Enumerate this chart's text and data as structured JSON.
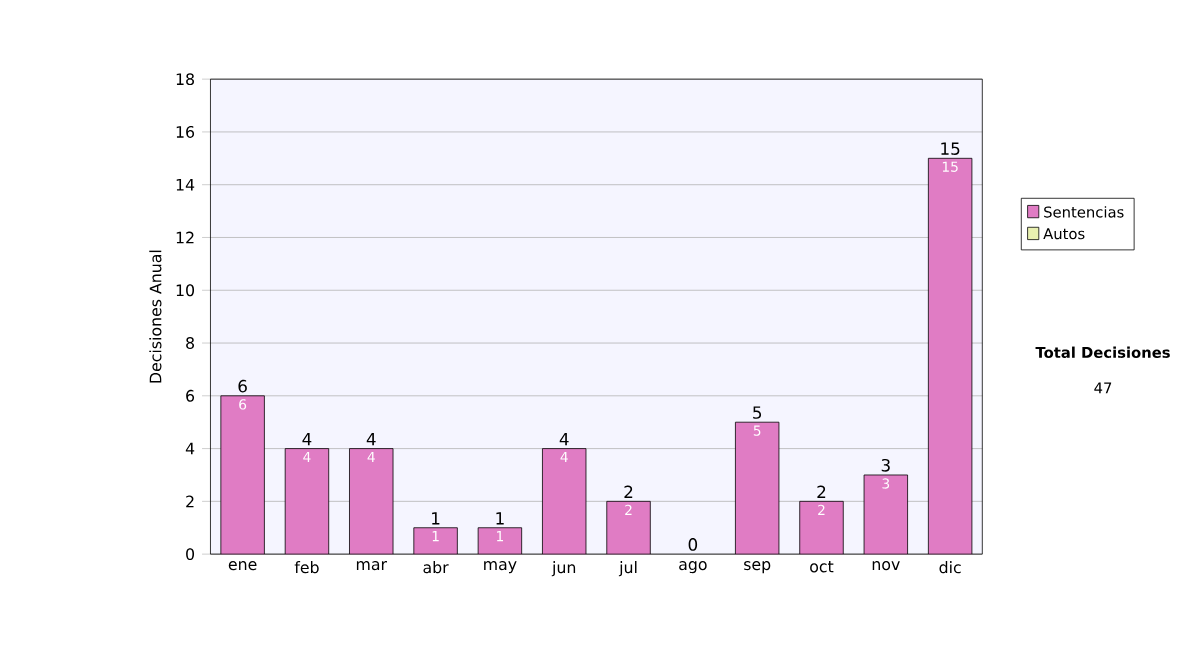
{
  "chart_data": {
    "type": "bar",
    "ylabel": "Decisiones Anual",
    "categories": [
      "ene",
      "feb",
      "mar",
      "abr",
      "may",
      "jun",
      "jul",
      "ago",
      "sep",
      "oct",
      "nov",
      "dic"
    ],
    "series": [
      {
        "name": "Sentencias",
        "color": "#e07cc4",
        "values": [
          6,
          4,
          4,
          1,
          1,
          4,
          2,
          0,
          5,
          2,
          3,
          15
        ],
        "value_labels": [
          "6",
          "4",
          "4",
          "1",
          "1",
          "4",
          "2",
          null,
          "5",
          "2",
          "3",
          "15"
        ]
      },
      {
        "name": "Autos",
        "color": "#e8f0b0",
        "values": [
          0,
          0,
          0,
          0,
          0,
          0,
          0,
          0,
          0,
          0,
          0,
          0
        ]
      }
    ],
    "stacked": true,
    "totals": [
      "6",
      "4",
      "4",
      "1",
      "1",
      "4",
      "2",
      "0",
      "5",
      "2",
      "3",
      "15"
    ],
    "ylim": [
      0,
      18
    ],
    "yticks": [
      0,
      2,
      4,
      6,
      8,
      10,
      12,
      14,
      16,
      18
    ],
    "grid": "y",
    "legend": "right",
    "annotations": [
      "Total Decisiones",
      "47"
    ]
  }
}
